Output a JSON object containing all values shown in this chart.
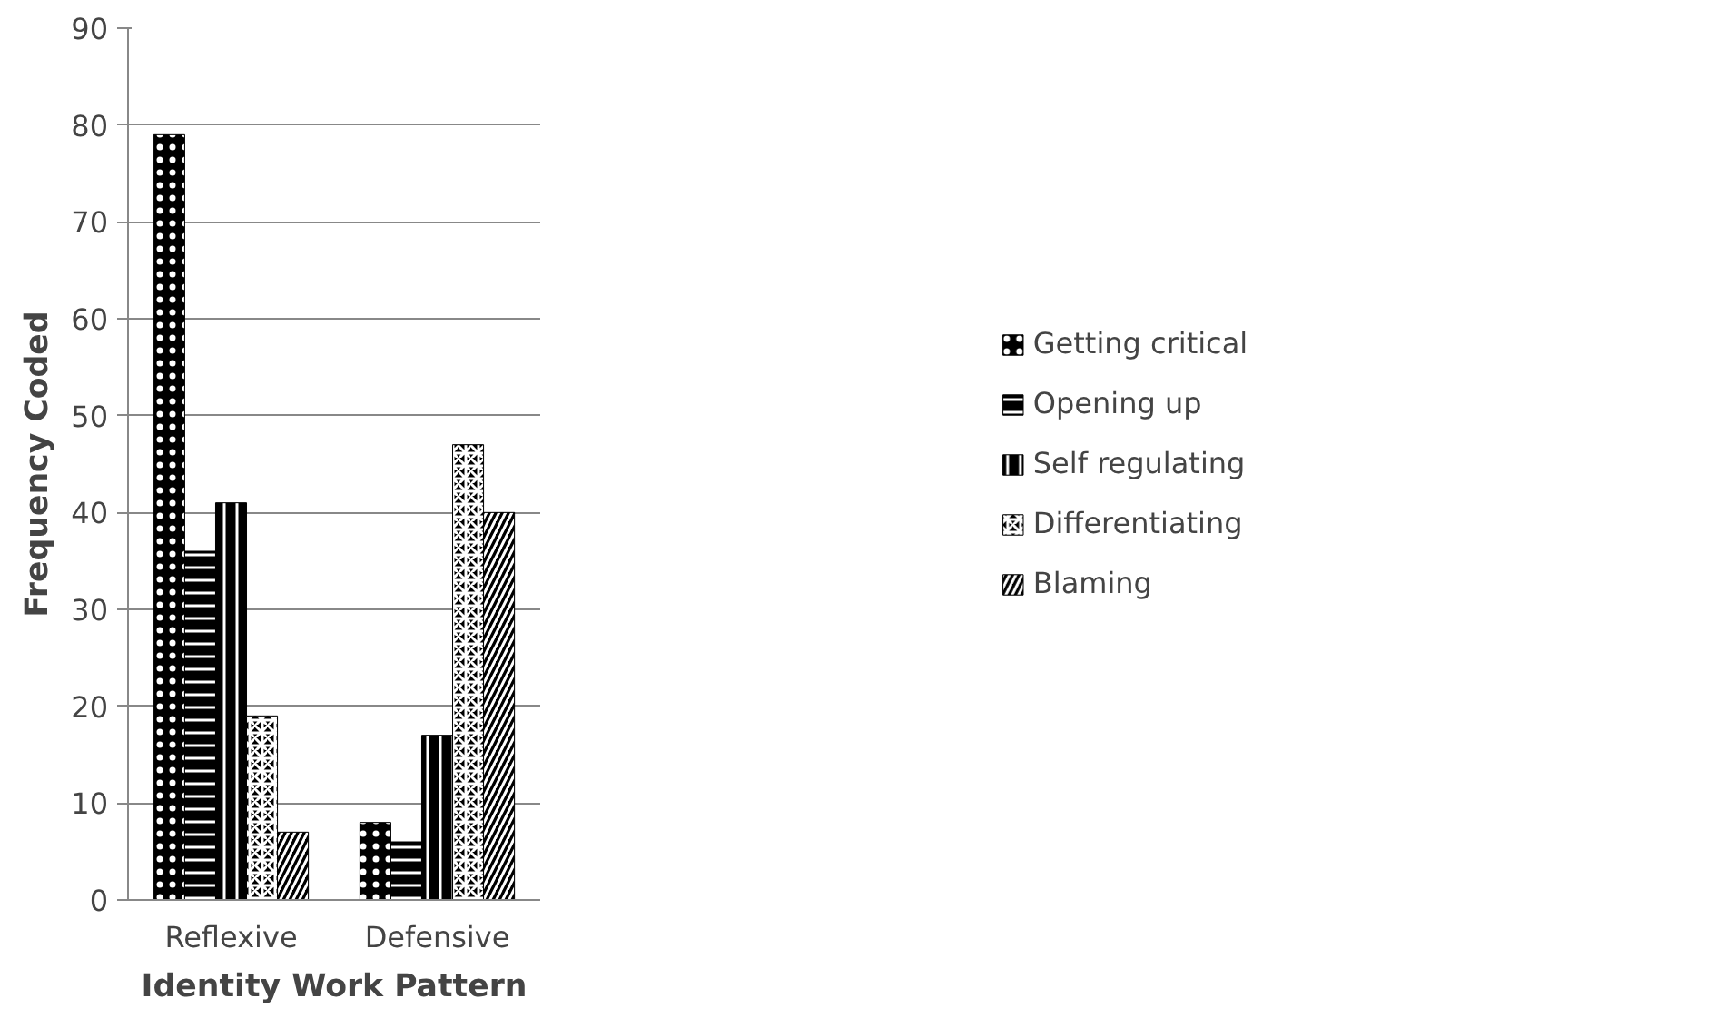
{
  "chart_data": {
    "type": "bar",
    "xlabel": "Identity Work Pattern",
    "ylabel": "Frequency Coded",
    "categories": [
      "Reflexive",
      "Defensive"
    ],
    "series": [
      {
        "name": "Getting critical",
        "color": "#000000",
        "values": [
          79,
          8
        ]
      },
      {
        "name": "Opening up",
        "color": "#000000",
        "values": [
          36,
          6
        ]
      },
      {
        "name": "Self regulating",
        "color": "#000000",
        "values": [
          41,
          17
        ]
      },
      {
        "name": "Differentiating",
        "color": "#000000",
        "values": [
          19,
          47
        ]
      },
      {
        "name": "Blaming",
        "color": "#000000",
        "values": [
          7,
          40
        ]
      }
    ],
    "ylim": [
      0,
      90
    ],
    "yticks": [
      0,
      10,
      20,
      30,
      40,
      50,
      60,
      70,
      80,
      90
    ],
    "grid": "y",
    "legend": "right"
  }
}
